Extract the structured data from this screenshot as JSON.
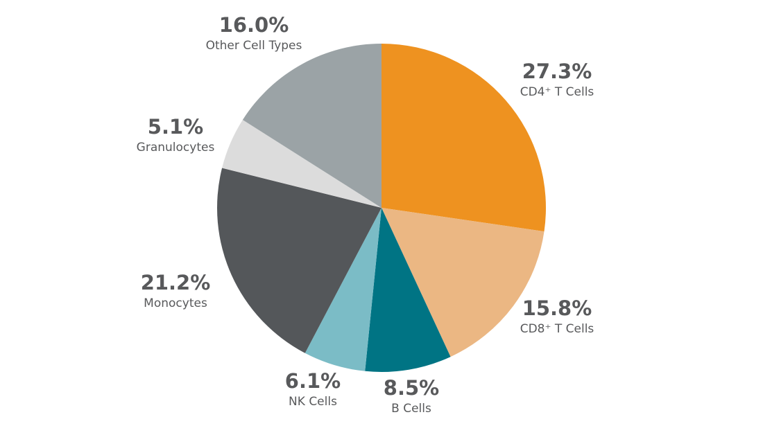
{
  "chart_data": {
    "type": "pie",
    "categories": [
      "CD4⁺ T Cells",
      "CD8⁺ T Cells",
      "B Cells",
      "NK Cells",
      "Monocytes",
      "Granulocytes",
      "Other Cell Types"
    ],
    "values": [
      27.3,
      15.8,
      8.5,
      6.1,
      21.2,
      5.1,
      16.0
    ],
    "value_labels": [
      "27.3%",
      "15.8%",
      "8.5%",
      "6.1%",
      "21.2%",
      "5.1%",
      "16.0%"
    ],
    "colors": [
      "#ee9220",
      "#ebb783",
      "#007484",
      "#7bbcc6",
      "#54575a",
      "#dcdcdc",
      "#9ba3a6"
    ]
  }
}
